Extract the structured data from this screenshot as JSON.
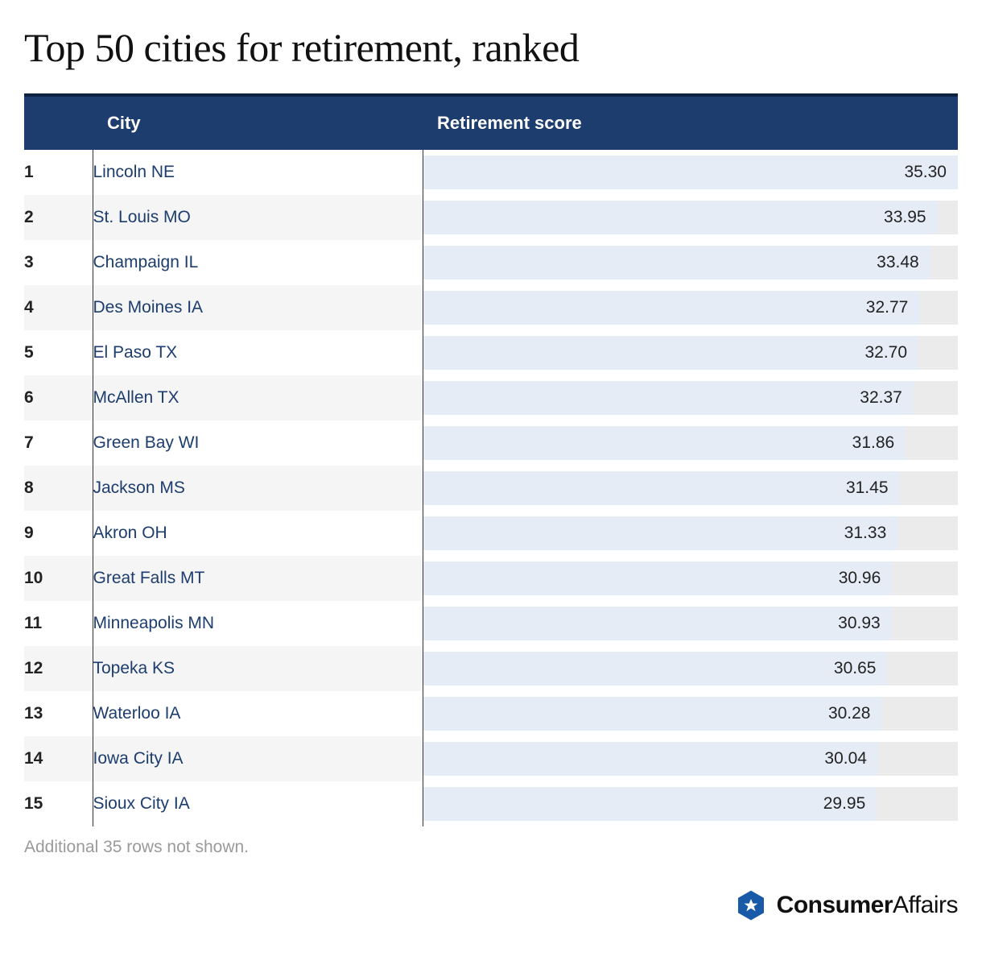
{
  "title": "Top 50 cities for retirement, ranked",
  "columns": {
    "rank": "",
    "city": "City",
    "score": "Retirement score"
  },
  "score_max": 35.3,
  "bar_fill_color": "#e5ecf6",
  "bar_track_color": "#ebebeb",
  "header_bg": "#1c3d6e",
  "header_border_top": "#0d2240",
  "city_text_color": "#1c3d6e",
  "rows": [
    {
      "rank": 1,
      "city": "Lincoln NE",
      "score": 35.3
    },
    {
      "rank": 2,
      "city": "St. Louis MO",
      "score": 33.95
    },
    {
      "rank": 3,
      "city": "Champaign IL",
      "score": 33.48
    },
    {
      "rank": 4,
      "city": "Des Moines IA",
      "score": 32.77
    },
    {
      "rank": 5,
      "city": "El Paso TX",
      "score": 32.7
    },
    {
      "rank": 6,
      "city": "McAllen TX",
      "score": 32.37
    },
    {
      "rank": 7,
      "city": "Green Bay WI",
      "score": 31.86
    },
    {
      "rank": 8,
      "city": "Jackson MS",
      "score": 31.45
    },
    {
      "rank": 9,
      "city": "Akron OH",
      "score": 31.33
    },
    {
      "rank": 10,
      "city": "Great Falls MT",
      "score": 30.96
    },
    {
      "rank": 11,
      "city": "Minneapolis MN",
      "score": 30.93
    },
    {
      "rank": 12,
      "city": "Topeka KS",
      "score": 30.65
    },
    {
      "rank": 13,
      "city": "Waterloo IA",
      "score": 30.28
    },
    {
      "rank": 14,
      "city": "Iowa City IA",
      "score": 30.04
    },
    {
      "rank": 15,
      "city": "Sioux City IA",
      "score": 29.95
    }
  ],
  "footnote": "Additional 35 rows not shown.",
  "brand": {
    "bold": "Consumer",
    "light": "Affairs",
    "icon_color": "#1859a8",
    "star_color": "#ffffff"
  }
}
